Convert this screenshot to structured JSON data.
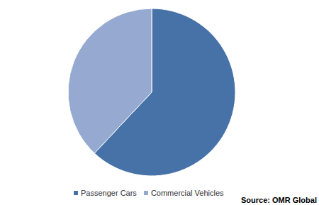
{
  "chart_data": {
    "type": "pie",
    "categories": [
      "Passenger Cars",
      "Commercial Vehicles"
    ],
    "values": [
      62,
      38
    ],
    "colors": [
      "#4672a8",
      "#95a9d1"
    ],
    "source": "Source: OMR Global"
  }
}
